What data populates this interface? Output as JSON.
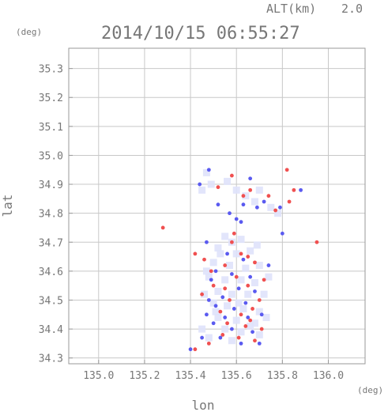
{
  "header": {
    "altitude_label": "ALT(km)",
    "altitude_value": "2.0",
    "timestamp": "2014/10/15 06:55:27",
    "y_unit": "(deg)",
    "x_unit": "(deg)"
  },
  "colors": {
    "frame": "#9a9a9a",
    "grid": "#c8c8c8",
    "text": "#777777",
    "positive": "#f05050",
    "negative": "#5a5af0",
    "weak": "#dfe2fb"
  },
  "chart_data": {
    "type": "scatter",
    "xlabel": "lon",
    "ylabel": "lat",
    "xlim": [
      134.87,
      136.16
    ],
    "ylim": [
      34.28,
      35.37
    ],
    "x_ticks": [
      "135.0",
      "135.2",
      "135.4",
      "135.6",
      "135.8",
      "136.0"
    ],
    "y_ticks": [
      "34.3",
      "34.4",
      "34.5",
      "34.6",
      "34.7",
      "34.8",
      "34.9",
      "35.0",
      "35.1",
      "35.2",
      "35.3"
    ],
    "grid": true,
    "series": [
      {
        "values_kind": "weak",
        "points": [
          [
            135.47,
            34.94
          ],
          [
            135.49,
            34.9
          ],
          [
            135.45,
            34.88
          ],
          [
            135.56,
            34.91
          ],
          [
            135.6,
            34.88
          ],
          [
            135.64,
            34.86
          ],
          [
            135.68,
            34.84
          ],
          [
            135.7,
            34.88
          ],
          [
            135.75,
            34.82
          ],
          [
            135.78,
            34.8
          ],
          [
            135.55,
            34.72
          ],
          [
            135.58,
            34.7
          ],
          [
            135.62,
            34.71
          ],
          [
            135.52,
            34.68
          ],
          [
            135.6,
            34.66
          ],
          [
            135.66,
            34.67
          ],
          [
            135.5,
            34.63
          ],
          [
            135.57,
            34.62
          ],
          [
            135.64,
            34.61
          ],
          [
            135.7,
            34.62
          ],
          [
            135.48,
            34.58
          ],
          [
            135.55,
            34.57
          ],
          [
            135.62,
            34.57
          ],
          [
            135.68,
            34.56
          ],
          [
            135.52,
            34.53
          ],
          [
            135.58,
            34.52
          ],
          [
            135.65,
            34.52
          ],
          [
            135.72,
            34.52
          ],
          [
            135.5,
            34.49
          ],
          [
            135.56,
            34.48
          ],
          [
            135.63,
            34.47
          ],
          [
            135.7,
            34.46
          ],
          [
            135.52,
            34.44
          ],
          [
            135.6,
            34.43
          ],
          [
            135.68,
            34.42
          ],
          [
            135.55,
            34.4
          ],
          [
            135.62,
            34.39
          ],
          [
            135.7,
            34.38
          ],
          [
            135.48,
            34.37
          ],
          [
            135.58,
            34.36
          ],
          [
            135.45,
            34.4
          ],
          [
            135.47,
            34.6
          ],
          [
            135.66,
            34.41
          ],
          [
            135.53,
            34.66
          ],
          [
            135.61,
            34.49
          ],
          [
            135.74,
            34.58
          ],
          [
            135.73,
            34.44
          ],
          [
            135.46,
            34.52
          ],
          [
            135.51,
            34.46
          ],
          [
            135.69,
            34.69
          ]
        ]
      },
      {
        "values_kind": "positive",
        "points": [
          [
            135.28,
            34.75
          ],
          [
            135.95,
            34.7
          ],
          [
            135.82,
            34.95
          ],
          [
            135.85,
            34.88
          ],
          [
            135.83,
            34.84
          ],
          [
            135.63,
            34.86
          ],
          [
            135.66,
            34.88
          ],
          [
            135.58,
            34.93
          ],
          [
            135.42,
            34.66
          ],
          [
            135.46,
            34.64
          ],
          [
            135.58,
            34.7
          ],
          [
            135.62,
            34.66
          ],
          [
            135.55,
            34.62
          ],
          [
            135.68,
            34.63
          ],
          [
            135.6,
            34.58
          ],
          [
            135.5,
            34.55
          ],
          [
            135.65,
            34.55
          ],
          [
            135.57,
            34.5
          ],
          [
            135.7,
            34.5
          ],
          [
            135.53,
            34.46
          ],
          [
            135.62,
            34.45
          ],
          [
            135.67,
            34.47
          ],
          [
            135.56,
            34.42
          ],
          [
            135.64,
            34.41
          ],
          [
            135.71,
            34.4
          ],
          [
            135.54,
            34.38
          ],
          [
            135.61,
            34.37
          ],
          [
            135.68,
            34.36
          ],
          [
            135.42,
            34.33
          ],
          [
            135.48,
            34.35
          ],
          [
            135.59,
            34.73
          ],
          [
            135.49,
            34.6
          ],
          [
            135.72,
            34.57
          ],
          [
            135.45,
            34.52
          ],
          [
            135.52,
            34.89
          ],
          [
            135.77,
            34.81
          ],
          [
            135.74,
            34.86
          ],
          [
            135.65,
            34.65
          ],
          [
            135.55,
            34.54
          ],
          [
            135.66,
            34.43
          ]
        ]
      },
      {
        "values_kind": "negative",
        "points": [
          [
            135.4,
            34.33
          ],
          [
            135.48,
            34.95
          ],
          [
            135.44,
            34.9
          ],
          [
            135.79,
            34.82
          ],
          [
            135.88,
            34.88
          ],
          [
            135.72,
            34.84
          ],
          [
            135.69,
            34.82
          ],
          [
            135.63,
            34.83
          ],
          [
            135.66,
            34.92
          ],
          [
            135.52,
            34.83
          ],
          [
            135.47,
            34.7
          ],
          [
            135.56,
            34.66
          ],
          [
            135.63,
            34.64
          ],
          [
            135.51,
            34.6
          ],
          [
            135.58,
            34.59
          ],
          [
            135.66,
            34.58
          ],
          [
            135.49,
            34.57
          ],
          [
            135.61,
            34.54
          ],
          [
            135.54,
            34.51
          ],
          [
            135.68,
            34.53
          ],
          [
            135.51,
            34.48
          ],
          [
            135.59,
            34.47
          ],
          [
            135.65,
            34.44
          ],
          [
            135.5,
            34.42
          ],
          [
            135.58,
            34.4
          ],
          [
            135.67,
            34.39
          ],
          [
            135.45,
            34.37
          ],
          [
            135.53,
            34.37
          ],
          [
            135.62,
            34.35
          ],
          [
            135.7,
            34.35
          ],
          [
            135.47,
            34.45
          ],
          [
            135.74,
            34.62
          ],
          [
            135.6,
            34.78
          ],
          [
            135.57,
            34.8
          ],
          [
            135.62,
            34.77
          ],
          [
            135.48,
            34.5
          ],
          [
            135.64,
            34.49
          ],
          [
            135.55,
            34.44
          ],
          [
            135.71,
            34.45
          ],
          [
            135.8,
            34.73
          ]
        ]
      }
    ]
  }
}
